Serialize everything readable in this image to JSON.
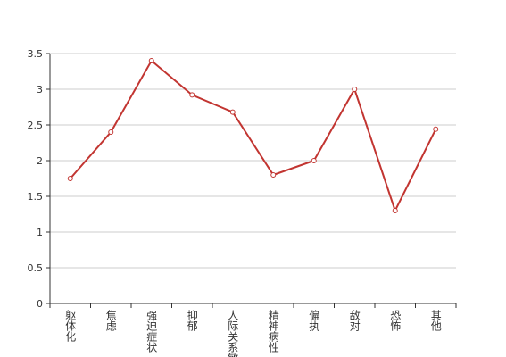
{
  "chart_data": {
    "type": "line",
    "categories": [
      "躯体化",
      "焦虑",
      "强迫症状",
      "抑郁",
      "人际关系敏感",
      "精神病性",
      "偏执",
      "敌对",
      "恐怖",
      "其他"
    ],
    "values": [
      1.75,
      2.4,
      3.4,
      2.92,
      2.68,
      1.8,
      2.0,
      3.0,
      1.3,
      2.44
    ],
    "color": "#c23531",
    "ylim": [
      0,
      3.5
    ],
    "yticks": [
      0,
      0.5,
      1,
      1.5,
      2,
      2.5,
      3,
      3.5
    ],
    "grid": true
  }
}
